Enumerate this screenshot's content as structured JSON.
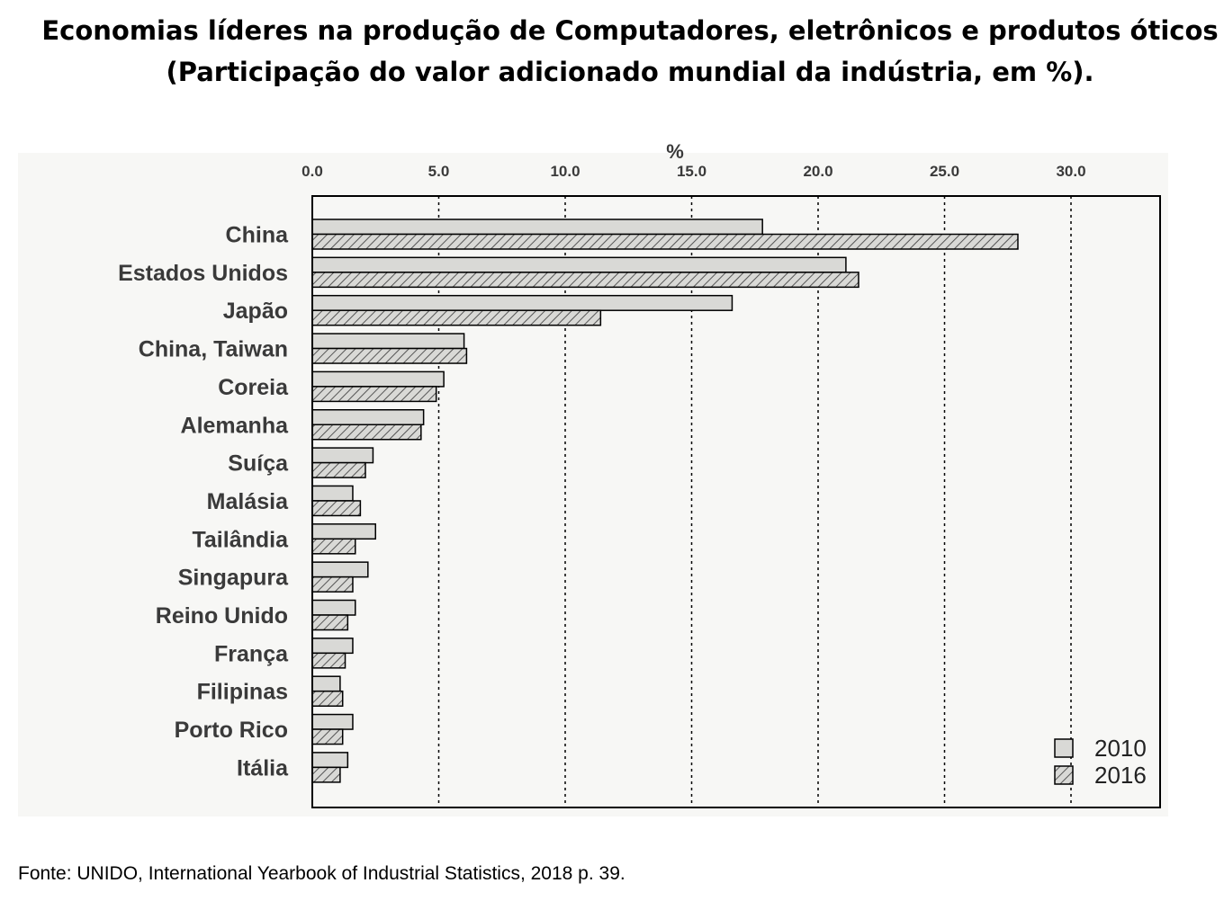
{
  "title_line1": "Economias líderes na produção de Computadores, eletrônicos e produtos óticos",
  "title_line2": "(Participação do valor adicionado mundial da indústria, em %).",
  "source": "Fonte: UNIDO, International Yearbook of Industrial Statistics, 2018  p. 39.",
  "chart_data": {
    "type": "bar",
    "orientation": "horizontal",
    "x_unit_label": "%",
    "xlim": [
      0,
      33.5
    ],
    "xticks": [
      0,
      5,
      10,
      15,
      20,
      25,
      30
    ],
    "xtick_labels": [
      "0.0",
      "5.0",
      "10.0",
      "15.0",
      "20.0",
      "25.0",
      "30.0"
    ],
    "grid": "vertical dotted",
    "axis_position": "top",
    "legend_position": "bottom-right",
    "categories": [
      "China",
      "Estados Unidos",
      "Japão",
      "China, Taiwan",
      "Coreia",
      "Alemanha",
      "Suíça",
      "Malásia",
      "Tailândia",
      "Singapura",
      "Reino Unido",
      "França",
      "Filipinas",
      "Porto Rico",
      "Itália"
    ],
    "series": [
      {
        "name": "2010",
        "pattern": "solid",
        "color": "#d9d9d6",
        "values": [
          17.8,
          21.1,
          16.6,
          6.0,
          5.2,
          4.4,
          2.4,
          1.6,
          2.5,
          2.2,
          1.7,
          1.6,
          1.1,
          1.6,
          1.4
        ]
      },
      {
        "name": "2016",
        "pattern": "hatched",
        "color": "#d9d9d6",
        "values": [
          27.9,
          21.6,
          11.4,
          6.1,
          4.9,
          4.3,
          2.1,
          1.9,
          1.7,
          1.6,
          1.4,
          1.3,
          1.2,
          1.2,
          1.1
        ]
      }
    ]
  }
}
